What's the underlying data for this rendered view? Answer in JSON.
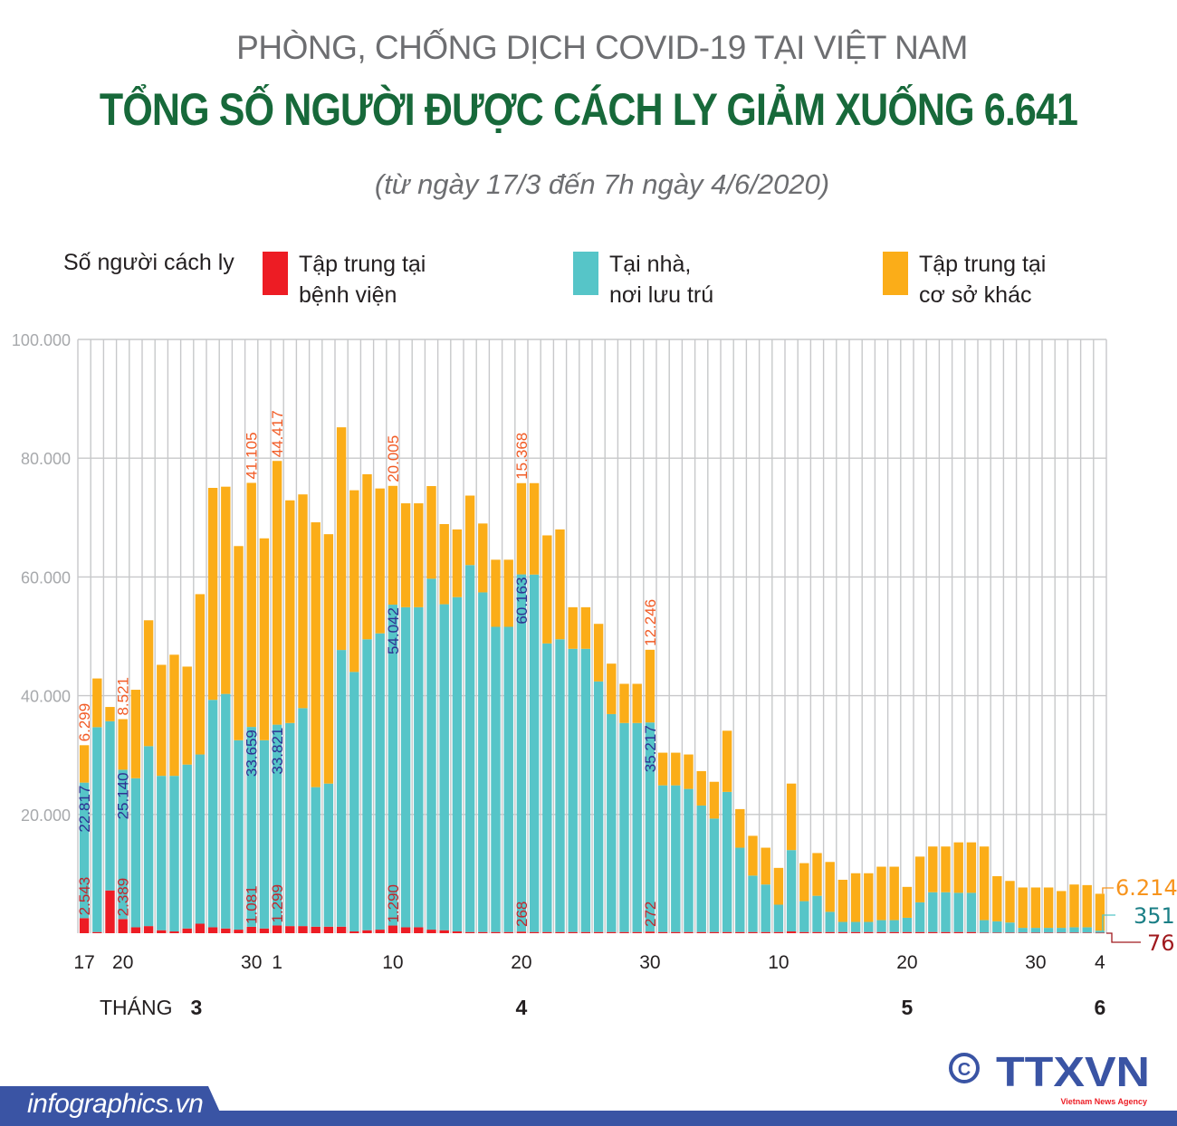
{
  "header": {
    "kicker": "PHÒNG, CHỐNG DỊCH COVID-19 TẠI VIỆT NAM",
    "title": "TỔNG SỐ NGƯỜI ĐƯỢC CÁCH LY GIẢM XUỐNG 6.641",
    "subtitle": "(từ ngày 17/3 đến 7h ngày 4/6/2020)"
  },
  "legend": {
    "title": "Số người cách ly",
    "items": [
      {
        "line1": "Tập trung tại",
        "line2": "bệnh viện",
        "color": "#ed1c24"
      },
      {
        "line1": "Tại nhà,",
        "line2": "nơi lưu trú",
        "color": "#56c5c8"
      },
      {
        "line1": "Tập trung tại",
        "line2": "cơ sở khác",
        "color": "#fbad18"
      }
    ]
  },
  "chart_data": {
    "type": "bar",
    "stacked": true,
    "ylim": [
      0,
      100000
    ],
    "yticks": [
      "20.000",
      "40.000",
      "60.000",
      "80.000",
      "100.000"
    ],
    "ytick_values": [
      20000,
      40000,
      60000,
      80000,
      100000
    ],
    "grid": true,
    "start_date": "17/3",
    "end_date": "4/6",
    "xticks": [
      {
        "index": 0,
        "label": "17"
      },
      {
        "index": 3,
        "label": "20"
      },
      {
        "index": 13,
        "label": "30"
      },
      {
        "index": 15,
        "label": "1"
      },
      {
        "index": 24,
        "label": "10"
      },
      {
        "index": 34,
        "label": "20"
      },
      {
        "index": 44,
        "label": "30"
      },
      {
        "index": 54,
        "label": "10"
      },
      {
        "index": 64,
        "label": "20"
      },
      {
        "index": 74,
        "label": "30"
      },
      {
        "index": 79,
        "label": "4"
      }
    ],
    "month_prefix": "THÁNG",
    "months": [
      {
        "index": 9,
        "label": "3"
      },
      {
        "index": 34,
        "label": "4"
      },
      {
        "index": 64,
        "label": "5"
      },
      {
        "index": 79,
        "label": "6"
      }
    ],
    "series": [
      {
        "name": "Tập trung tại bệnh viện",
        "color": "#ed1c24",
        "values": [
          2543,
          200,
          7200,
          2389,
          1000,
          1200,
          500,
          300,
          800,
          1600,
          1000,
          800,
          600,
          1081,
          800,
          1299,
          1200,
          1200,
          1100,
          1100,
          1100,
          300,
          500,
          600,
          1290,
          1000,
          1000,
          600,
          500,
          300,
          200,
          200,
          200,
          200,
          268,
          200,
          200,
          200,
          200,
          200,
          200,
          200,
          200,
          200,
          272,
          200,
          200,
          200,
          200,
          200,
          200,
          200,
          200,
          200,
          200,
          300,
          200,
          200,
          200,
          200,
          200,
          200,
          200,
          200,
          200,
          200,
          200,
          200,
          200,
          200,
          100,
          100,
          100,
          100,
          100,
          100,
          100,
          100,
          100,
          76
        ]
      },
      {
        "name": "Tại nhà, nơi lưu trú",
        "color": "#56c5c8",
        "values": [
          22817,
          34500,
          28500,
          25140,
          25100,
          30300,
          26000,
          26200,
          27600,
          28500,
          38300,
          39500,
          31900,
          33659,
          31700,
          33821,
          34200,
          36700,
          23500,
          24100,
          46600,
          43700,
          49000,
          49900,
          54042,
          53900,
          53900,
          59100,
          54900,
          56300,
          61800,
          57200,
          51400,
          51400,
          60163,
          60200,
          48600,
          49300,
          47700,
          47700,
          42200,
          36700,
          35200,
          35200,
          35217,
          24700,
          24700,
          24100,
          21300,
          19100,
          23600,
          14200,
          9500,
          8000,
          4600,
          13700,
          5200,
          6100,
          3400,
          1700,
          1700,
          1700,
          2000,
          2000,
          2400,
          5000,
          6700,
          6700,
          6600,
          6600,
          2100,
          1900,
          1700,
          800,
          800,
          800,
          800,
          900,
          900,
          351
        ]
      },
      {
        "name": "Tập trung tại cơ sở khác",
        "color": "#fbad18",
        "values": [
          6299,
          8200,
          2400,
          8521,
          14900,
          21200,
          18700,
          20400,
          16500,
          27000,
          35700,
          34900,
          32700,
          41105,
          34000,
          44417,
          37500,
          36000,
          44600,
          42000,
          37500,
          30600,
          27800,
          24400,
          20005,
          17500,
          17500,
          15600,
          13500,
          11400,
          11700,
          11600,
          11300,
          11300,
          15368,
          15400,
          18200,
          18500,
          7000,
          7000,
          9700,
          8500,
          6600,
          6600,
          12246,
          5500,
          5500,
          5800,
          5800,
          6200,
          10300,
          6500,
          6700,
          6200,
          6200,
          11200,
          6400,
          7200,
          8400,
          7100,
          8200,
          8200,
          9000,
          9000,
          5200,
          7700,
          7700,
          7700,
          8500,
          8500,
          12400,
          7600,
          7000,
          6800,
          6800,
          6800,
          6200,
          7200,
          7100,
          6214
        ]
      }
    ],
    "data_labels": [
      {
        "index": 0,
        "series": 0,
        "text": "2.543"
      },
      {
        "index": 0,
        "series": 1,
        "text": "22.817"
      },
      {
        "index": 0,
        "series": 2,
        "text": "6.299"
      },
      {
        "index": 3,
        "series": 0,
        "text": "2.389"
      },
      {
        "index": 3,
        "series": 1,
        "text": "25.140"
      },
      {
        "index": 3,
        "series": 2,
        "text": "8.521"
      },
      {
        "index": 13,
        "series": 0,
        "text": "1.081"
      },
      {
        "index": 13,
        "series": 1,
        "text": "33.659"
      },
      {
        "index": 13,
        "series": 2,
        "text": "41.105"
      },
      {
        "index": 15,
        "series": 0,
        "text": "1.299"
      },
      {
        "index": 15,
        "series": 1,
        "text": "33.821"
      },
      {
        "index": 15,
        "series": 2,
        "text": "44.417"
      },
      {
        "index": 24,
        "series": 0,
        "text": "1.290"
      },
      {
        "index": 24,
        "series": 1,
        "text": "54.042"
      },
      {
        "index": 24,
        "series": 2,
        "text": "20.005"
      },
      {
        "index": 34,
        "series": 0,
        "text": "268"
      },
      {
        "index": 34,
        "series": 1,
        "text": "60.163"
      },
      {
        "index": 34,
        "series": 2,
        "text": "15.368"
      },
      {
        "index": 44,
        "series": 0,
        "text": "272"
      },
      {
        "index": 44,
        "series": 1,
        "text": "35.217"
      },
      {
        "index": 44,
        "series": 2,
        "text": "12.246"
      }
    ],
    "final_labels": [
      {
        "series": 2,
        "text": "6.214",
        "color": "#f7941d"
      },
      {
        "series": 1,
        "text": "351",
        "color": "#1b7f86"
      },
      {
        "series": 0,
        "text": "76",
        "color": "#a0191e"
      }
    ],
    "label_colors": [
      "#c1272d",
      "#2e3192",
      "#f15a24"
    ]
  },
  "footer": {
    "site": "infographics.vn",
    "logo_text": "TTXVN",
    "logo_sub": "Vietnam News Agency",
    "brand_color": "#3a54a4"
  }
}
